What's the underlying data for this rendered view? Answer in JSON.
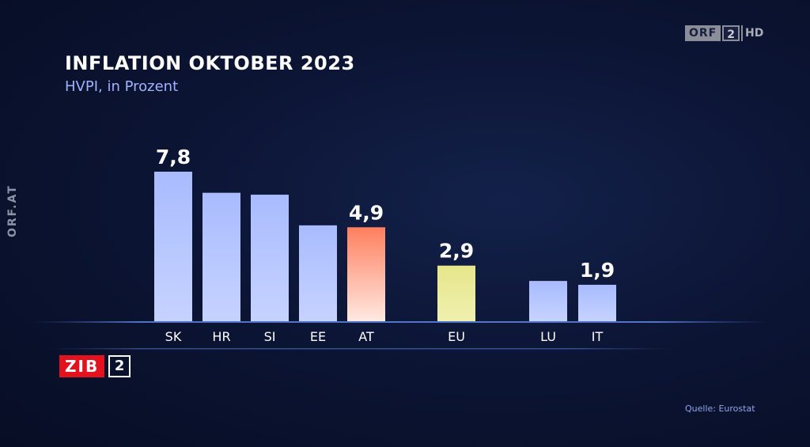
{
  "broadcaster": {
    "logo_text": "ORF",
    "channel": "2",
    "quality": "HD"
  },
  "side_label": "ORF.AT",
  "show_logo": {
    "name": "ZIB",
    "number": "2"
  },
  "source": "Quelle: Eurostat",
  "colors": {
    "bar_default": "#b4c4ff",
    "bar_highlight_at": "#ff8a6a",
    "bar_highlight_eu": "#ecec96",
    "background": "#0c1535",
    "zib_red": "#e4121d"
  },
  "chart_data": {
    "type": "bar",
    "title": "INFLATION OKTOBER 2023",
    "subtitle": "HVPI, in Prozent",
    "categories": [
      "SK",
      "HR",
      "SI",
      "EE",
      "AT",
      "EU",
      "LU",
      "IT"
    ],
    "values": [
      7.8,
      6.7,
      6.6,
      5.0,
      4.9,
      2.9,
      2.1,
      1.9
    ],
    "data_labels": [
      "7,8",
      "",
      "",
      "",
      "4,9",
      "2,9",
      "",
      "1,9"
    ],
    "highlight": {
      "AT": "bar_highlight_at",
      "EU": "bar_highlight_eu"
    },
    "ylim": [
      0,
      7.8
    ],
    "xlabel": "",
    "ylabel": "",
    "grid": false,
    "legend": "none"
  }
}
